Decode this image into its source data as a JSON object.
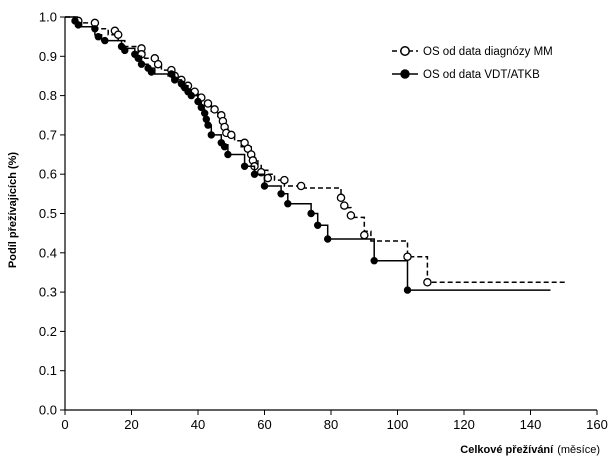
{
  "chart_data": {
    "type": "line",
    "subtype": "kaplan-meier",
    "xlabel_bold": "Celkové přežívání",
    "xlabel_unit": "(měsíce)",
    "ylabel": "Podíl přežívajících (%)",
    "xlim": [
      0,
      160
    ],
    "ylim": [
      0.0,
      1.0
    ],
    "x_ticks": [
      "0",
      "20",
      "40",
      "60",
      "80",
      "100",
      "120",
      "140",
      "160"
    ],
    "y_ticks": [
      "0.0",
      "0.1",
      "0.2",
      "0.3",
      "0.4",
      "0.5",
      "0.6",
      "0.7",
      "0.8",
      "0.9",
      "1.0"
    ],
    "legend_position": "top-right",
    "series": [
      {
        "name": "OS od data diagnózy MM",
        "line_style": "dashed",
        "marker": "open-circle",
        "color": "#000000",
        "steps": [
          [
            0,
            1.0
          ],
          [
            4,
            0.985
          ],
          [
            9,
            0.97
          ],
          [
            13,
            0.955
          ],
          [
            16,
            0.94
          ],
          [
            18,
            0.925
          ],
          [
            22,
            0.91
          ],
          [
            24,
            0.895
          ],
          [
            27,
            0.88
          ],
          [
            29,
            0.865
          ],
          [
            31,
            0.85
          ],
          [
            33,
            0.835
          ],
          [
            35,
            0.82
          ],
          [
            37,
            0.805
          ],
          [
            40,
            0.79
          ],
          [
            42,
            0.775
          ],
          [
            44,
            0.76
          ],
          [
            46,
            0.745
          ],
          [
            47,
            0.73
          ],
          [
            48,
            0.715
          ],
          [
            49,
            0.7
          ],
          [
            51,
            0.685
          ],
          [
            53,
            0.67
          ],
          [
            56,
            0.655
          ],
          [
            57,
            0.64
          ],
          [
            58,
            0.625
          ],
          [
            59,
            0.61
          ],
          [
            61,
            0.6
          ],
          [
            63,
            0.585
          ],
          [
            66,
            0.57
          ],
          [
            71,
            0.565
          ],
          [
            83,
            0.54
          ],
          [
            84,
            0.515
          ],
          [
            86,
            0.49
          ],
          [
            90,
            0.455
          ],
          [
            92,
            0.43
          ],
          [
            103,
            0.39
          ],
          [
            109,
            0.325
          ],
          [
            151,
            0.325
          ]
        ],
        "markers": [
          [
            4,
            0.99
          ],
          [
            9,
            0.985
          ],
          [
            15,
            0.965
          ],
          [
            16,
            0.955
          ],
          [
            23,
            0.92
          ],
          [
            23,
            0.905
          ],
          [
            27,
            0.895
          ],
          [
            28,
            0.88
          ],
          [
            32,
            0.865
          ],
          [
            33,
            0.85
          ],
          [
            35,
            0.84
          ],
          [
            37,
            0.825
          ],
          [
            39,
            0.81
          ],
          [
            41,
            0.795
          ],
          [
            43,
            0.78
          ],
          [
            45,
            0.765
          ],
          [
            47,
            0.75
          ],
          [
            47.5,
            0.735
          ],
          [
            48,
            0.72
          ],
          [
            48.5,
            0.705
          ],
          [
            50,
            0.7
          ],
          [
            54,
            0.68
          ],
          [
            55,
            0.665
          ],
          [
            56,
            0.65
          ],
          [
            56.5,
            0.635
          ],
          [
            57,
            0.62
          ],
          [
            59,
            0.605
          ],
          [
            61,
            0.59
          ],
          [
            66,
            0.585
          ],
          [
            71,
            0.57
          ],
          [
            83,
            0.54
          ],
          [
            84,
            0.52
          ],
          [
            86,
            0.495
          ],
          [
            90,
            0.445
          ],
          [
            103,
            0.39
          ],
          [
            109,
            0.325
          ]
        ]
      },
      {
        "name": "OS od data VDT/ATKB",
        "line_style": "solid",
        "marker": "filled-circle",
        "color": "#000000",
        "steps": [
          [
            0,
            1.0
          ],
          [
            3,
            0.985
          ],
          [
            5,
            0.975
          ],
          [
            9,
            0.955
          ],
          [
            11,
            0.94
          ],
          [
            17,
            0.92
          ],
          [
            21,
            0.9
          ],
          [
            23,
            0.88
          ],
          [
            25,
            0.87
          ],
          [
            27,
            0.855
          ],
          [
            33,
            0.84
          ],
          [
            35,
            0.825
          ],
          [
            37,
            0.815
          ],
          [
            38,
            0.8
          ],
          [
            40,
            0.785
          ],
          [
            41,
            0.765
          ],
          [
            42,
            0.745
          ],
          [
            43,
            0.725
          ],
          [
            44,
            0.7
          ],
          [
            47,
            0.675
          ],
          [
            49,
            0.65
          ],
          [
            54,
            0.62
          ],
          [
            57,
            0.6
          ],
          [
            60,
            0.57
          ],
          [
            65,
            0.55
          ],
          [
            67,
            0.525
          ],
          [
            74,
            0.5
          ],
          [
            76,
            0.47
          ],
          [
            79,
            0.435
          ],
          [
            93,
            0.38
          ],
          [
            103,
            0.305
          ],
          [
            146,
            0.305
          ]
        ],
        "markers": [
          [
            3,
            0.99
          ],
          [
            4,
            0.98
          ],
          [
            9,
            0.97
          ],
          [
            10,
            0.95
          ],
          [
            12,
            0.94
          ],
          [
            17,
            0.925
          ],
          [
            18,
            0.915
          ],
          [
            21,
            0.905
          ],
          [
            22,
            0.895
          ],
          [
            23,
            0.88
          ],
          [
            25,
            0.87
          ],
          [
            26,
            0.86
          ],
          [
            32,
            0.855
          ],
          [
            33,
            0.84
          ],
          [
            35,
            0.83
          ],
          [
            36,
            0.82
          ],
          [
            37,
            0.81
          ],
          [
            38,
            0.8
          ],
          [
            40,
            0.785
          ],
          [
            41,
            0.77
          ],
          [
            42,
            0.755
          ],
          [
            42.5,
            0.74
          ],
          [
            43,
            0.725
          ],
          [
            44,
            0.7
          ],
          [
            47,
            0.68
          ],
          [
            48,
            0.67
          ],
          [
            49,
            0.65
          ],
          [
            54,
            0.62
          ],
          [
            57,
            0.6
          ],
          [
            60,
            0.57
          ],
          [
            65,
            0.55
          ],
          [
            67,
            0.525
          ],
          [
            74,
            0.5
          ],
          [
            76,
            0.47
          ],
          [
            79,
            0.435
          ],
          [
            93,
            0.38
          ],
          [
            103,
            0.305
          ]
        ]
      }
    ]
  }
}
